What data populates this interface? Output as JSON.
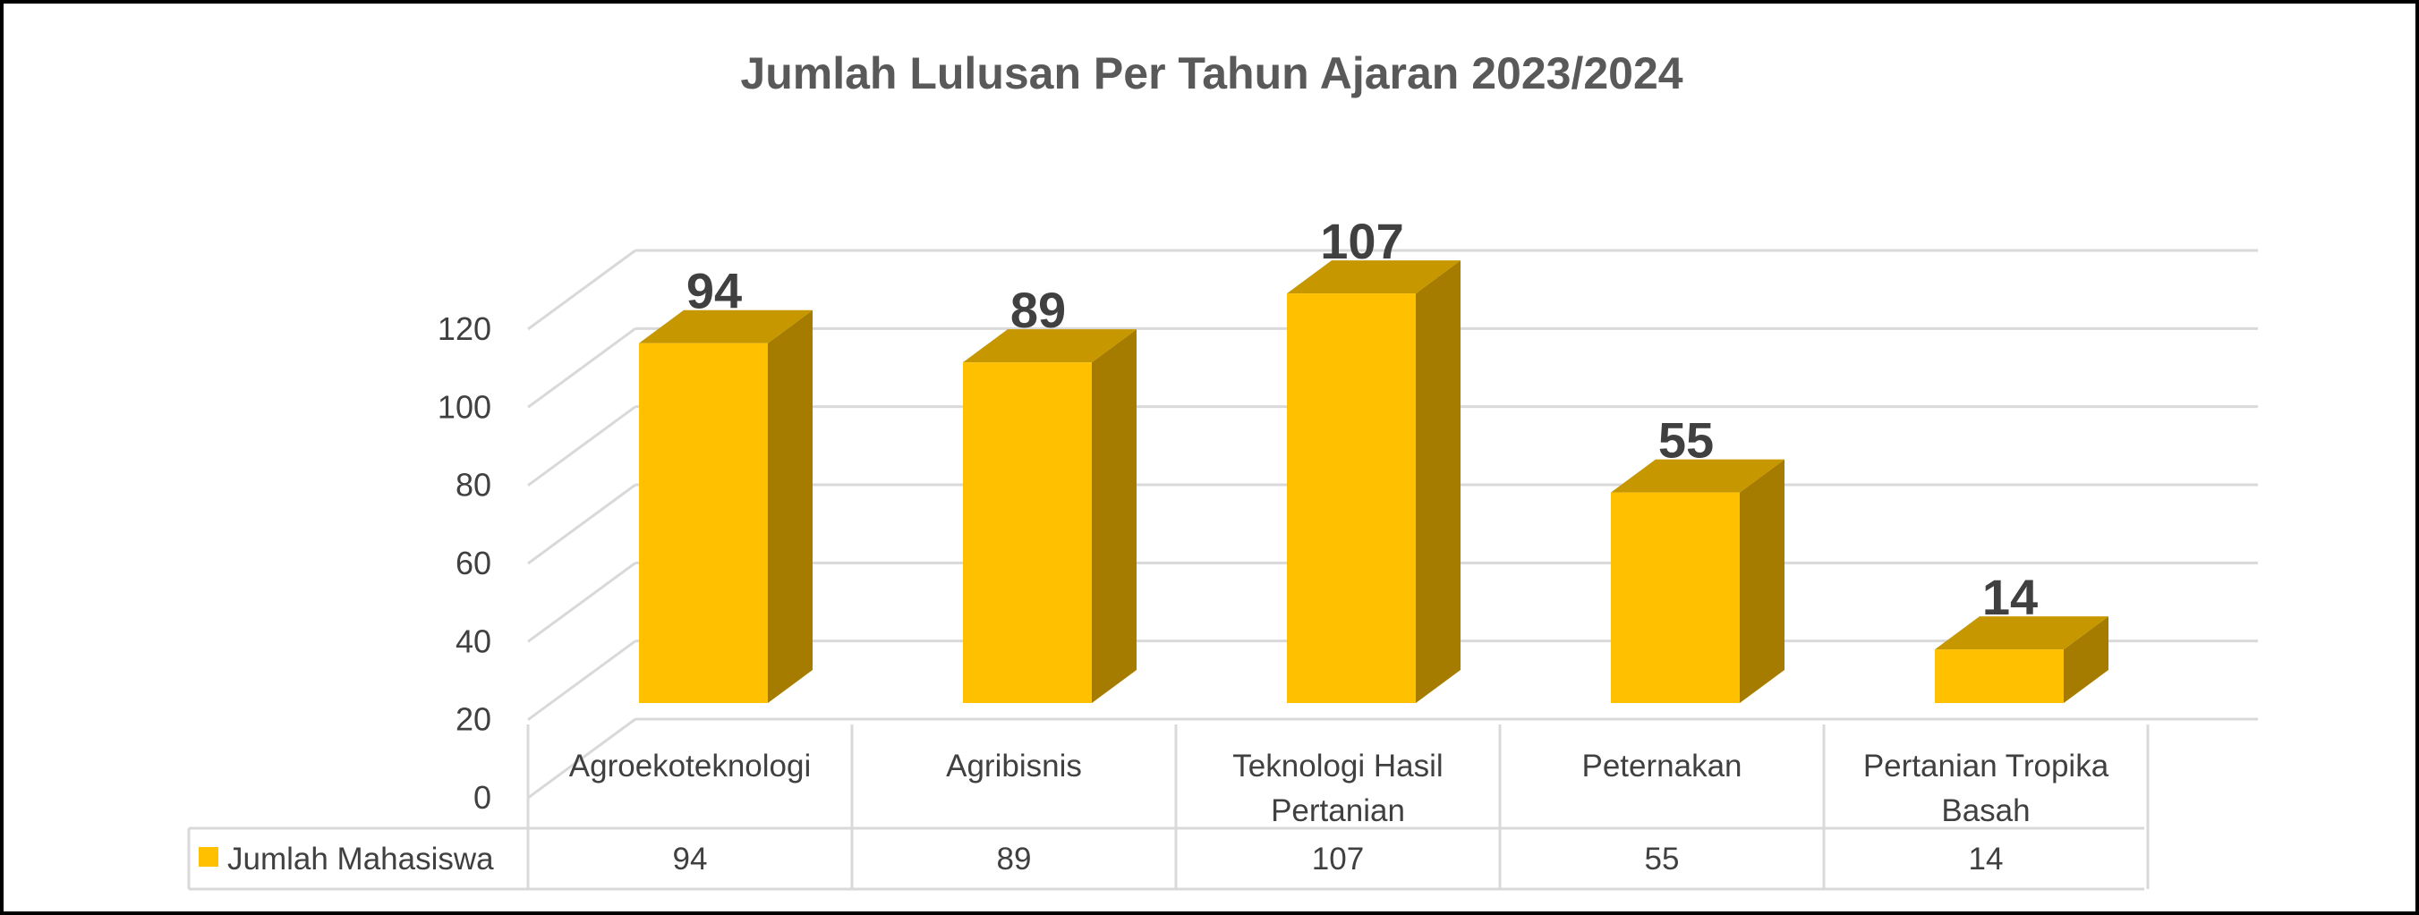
{
  "chart_data": {
    "type": "bar",
    "style": "3d-column-with-data-table",
    "title": "Jumlah Lulusan Per Tahun Ajaran 2023/2024",
    "categories": [
      [
        "Agroekoteknologi"
      ],
      [
        "Agribisnis"
      ],
      [
        "Teknologi Hasil",
        "Pertanian"
      ],
      [
        "Peternakan"
      ],
      [
        "Pertanian Tropika",
        "Basah"
      ]
    ],
    "series": [
      {
        "name": "Jumlah Mahasiswa",
        "values": [
          94,
          89,
          107,
          55,
          14
        ],
        "color": "#FFC000"
      }
    ],
    "ylim": [
      0,
      120
    ],
    "yticks": [
      0,
      20,
      40,
      60,
      80,
      100,
      120
    ],
    "grid": true,
    "data_labels": true,
    "legend": "data-table-left",
    "colors": {
      "bar_front": "#FFC000",
      "bar_side": "#A67C00",
      "bar_top": "#C79700",
      "grid": "#D9D9D9",
      "title_text": "#595959",
      "axis_text": "#404040",
      "label_text": "#404040"
    }
  }
}
